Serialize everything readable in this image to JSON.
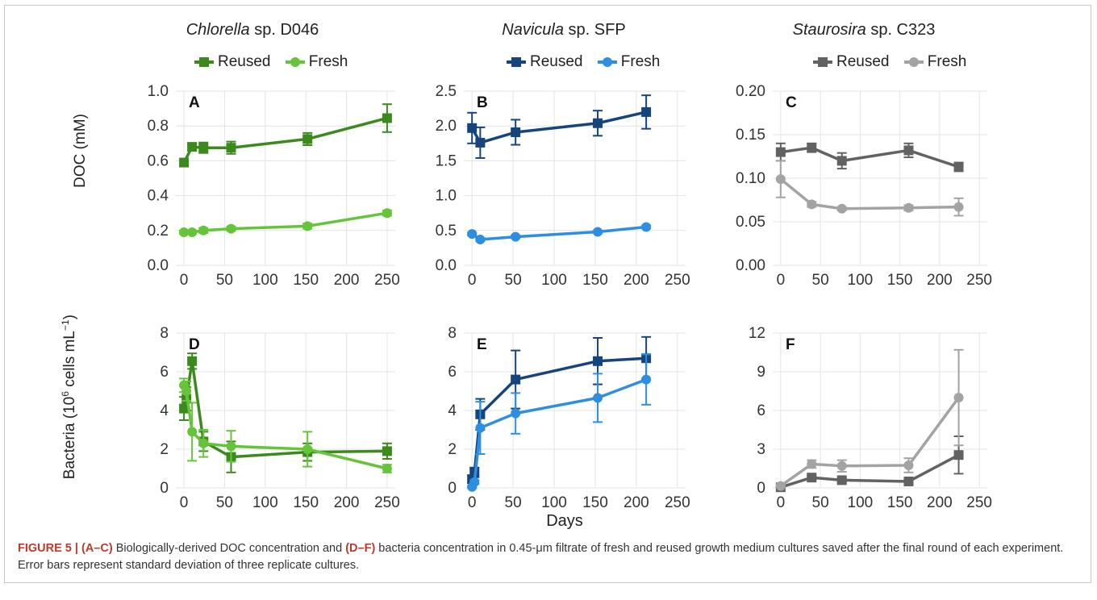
{
  "panel_titles": [
    {
      "genus": "Chlorella",
      "rest": " sp. D046"
    },
    {
      "genus": "Navicula",
      "rest": " sp. SFP"
    },
    {
      "genus": "Staurosira",
      "rest": " sp. C323"
    }
  ],
  "legend": {
    "reused": "Reused",
    "fresh": "Fresh"
  },
  "ylabels": {
    "doc": "DOC (mM)",
    "bacteria_pre": "Bacteria (10",
    "bacteria_sup": "6",
    "bacteria_post": " cells mL",
    "bacteria_sup2": "−1",
    "bacteria_end": ")"
  },
  "xlabel": "Days",
  "caption": {
    "fig": "FIGURE 5 | ",
    "p1": "(A–C)",
    "t1": " Biologically-derived DOC concentration and ",
    "p2": "(D–F)",
    "t2": " bacteria concentration in 0.45-μm filtrate of fresh and reused growth medium cultures saved after the final round of each experiment. Error bars represent standard deviation of three replicate cultures."
  },
  "colors": {
    "chlorella": {
      "reused": "#3c8a1e",
      "fresh": "#66c43a"
    },
    "navicula": {
      "reused": "#16447c",
      "fresh": "#2e8ee0"
    },
    "staurosira": {
      "reused": "#626262",
      "fresh": "#a3a3a3"
    }
  },
  "chart_data": [
    {
      "type": "line",
      "panel": "A",
      "species": "chlorella",
      "ylim": [
        0,
        1.0
      ],
      "yticks": [
        "0.0",
        "0.2",
        "0.4",
        "0.6",
        "0.8",
        "1.0"
      ],
      "xlim": [
        -10,
        260
      ],
      "xticks": [
        0,
        50,
        100,
        150,
        200,
        250
      ],
      "series": [
        {
          "name": "Reused",
          "x": [
            0,
            10,
            24,
            58,
            152,
            250
          ],
          "y": [
            0.59,
            0.68,
            0.675,
            0.675,
            0.725,
            0.845
          ],
          "err": [
            0.01,
            0.02,
            0.03,
            0.035,
            0.035,
            0.08
          ]
        },
        {
          "name": "Fresh",
          "x": [
            0,
            10,
            24,
            58,
            152,
            250
          ],
          "y": [
            0.19,
            0.19,
            0.2,
            0.21,
            0.225,
            0.3
          ],
          "err": [
            0.01,
            0.01,
            0.015,
            0.012,
            0.015,
            0.015
          ]
        }
      ]
    },
    {
      "type": "line",
      "panel": "B",
      "species": "navicula",
      "ylim": [
        0,
        2.5
      ],
      "yticks": [
        "0.0",
        "0.5",
        "1.0",
        "1.5",
        "2.0",
        "2.5"
      ],
      "xlim": [
        -10,
        260
      ],
      "xticks": [
        0,
        50,
        100,
        150,
        200,
        250
      ],
      "series": [
        {
          "name": "Reused",
          "x": [
            0,
            10,
            53,
            153,
            212
          ],
          "y": [
            1.97,
            1.76,
            1.91,
            2.04,
            2.2
          ],
          "err": [
            0.22,
            0.22,
            0.18,
            0.18,
            0.24
          ]
        },
        {
          "name": "Fresh",
          "x": [
            0,
            10,
            53,
            153,
            212
          ],
          "y": [
            0.45,
            0.37,
            0.41,
            0.48,
            0.55
          ],
          "err": [
            0.02,
            0.02,
            0.02,
            0.02,
            0.02
          ]
        }
      ]
    },
    {
      "type": "line",
      "panel": "C",
      "species": "staurosira",
      "ylim": [
        0,
        0.2
      ],
      "yticks": [
        "0.00",
        "0.05",
        "0.10",
        "0.15",
        "0.20"
      ],
      "xlim": [
        -10,
        260
      ],
      "xticks": [
        0,
        50,
        100,
        150,
        200,
        250
      ],
      "series": [
        {
          "name": "Reused",
          "x": [
            0,
            39,
            77,
            161,
            224
          ],
          "y": [
            0.13,
            0.135,
            0.12,
            0.132,
            0.113
          ],
          "err": [
            0.01,
            0.005,
            0.009,
            0.008,
            0.005
          ]
        },
        {
          "name": "Fresh",
          "x": [
            0,
            39,
            77,
            161,
            224
          ],
          "y": [
            0.099,
            0.07,
            0.065,
            0.066,
            0.067
          ],
          "err": [
            0.021,
            0.003,
            0.002,
            0.003,
            0.01
          ]
        }
      ]
    },
    {
      "type": "line",
      "panel": "D",
      "species": "chlorella",
      "ylim": [
        0,
        8
      ],
      "yticks": [
        "0",
        "2",
        "4",
        "6",
        "8"
      ],
      "xlim": [
        -10,
        260
      ],
      "xticks": [
        0,
        50,
        100,
        150,
        200,
        250
      ],
      "series": [
        {
          "name": "Reused",
          "x": [
            0,
            3,
            10,
            24,
            58,
            152,
            250
          ],
          "y": [
            4.1,
            4.6,
            6.55,
            2.4,
            1.6,
            1.85,
            1.9
          ],
          "err": [
            0.6,
            0.6,
            0.4,
            0.5,
            0.8,
            0.45,
            0.4
          ]
        },
        {
          "name": "Fresh",
          "x": [
            0,
            3,
            10,
            24,
            58,
            152,
            250
          ],
          "y": [
            5.3,
            5.0,
            2.9,
            2.3,
            2.15,
            2.0,
            1.0
          ],
          "err": [
            0.35,
            0.5,
            1.5,
            0.7,
            0.8,
            0.9,
            0.2
          ]
        }
      ]
    },
    {
      "type": "line",
      "panel": "E",
      "species": "navicula",
      "ylim": [
        0,
        8
      ],
      "yticks": [
        "0",
        "2",
        "4",
        "6",
        "8"
      ],
      "xlim": [
        -10,
        260
      ],
      "xticks": [
        0,
        50,
        100,
        150,
        200,
        250
      ],
      "series": [
        {
          "name": "Reused",
          "x": [
            0,
            3,
            10,
            53,
            153,
            212
          ],
          "y": [
            0.45,
            0.8,
            3.8,
            5.6,
            6.55,
            6.7
          ],
          "err": [
            0.2,
            0.25,
            0.8,
            1.5,
            1.2,
            1.1
          ]
        },
        {
          "name": "Fresh",
          "x": [
            0,
            3,
            10,
            53,
            153,
            212
          ],
          "y": [
            0.05,
            0.3,
            3.1,
            3.85,
            4.65,
            5.6
          ],
          "err": [
            0.05,
            0.1,
            1.35,
            1.05,
            1.25,
            1.3
          ]
        }
      ]
    },
    {
      "type": "line",
      "panel": "F",
      "species": "staurosira",
      "ylim": [
        0,
        12
      ],
      "yticks": [
        "0",
        "3",
        "6",
        "9",
        "12"
      ],
      "xlim": [
        -10,
        260
      ],
      "xticks": [
        0,
        50,
        100,
        150,
        200,
        250
      ],
      "series": [
        {
          "name": "Reused",
          "x": [
            0,
            39,
            77,
            161,
            224
          ],
          "y": [
            0.05,
            0.8,
            0.6,
            0.5,
            2.55
          ],
          "err": [
            0.05,
            0.15,
            0.15,
            0.15,
            1.45
          ]
        },
        {
          "name": "Fresh",
          "x": [
            0,
            39,
            77,
            161,
            224
          ],
          "y": [
            0.15,
            1.85,
            1.7,
            1.75,
            7.0
          ],
          "err": [
            0.1,
            0.3,
            0.45,
            0.55,
            3.7
          ]
        }
      ]
    }
  ]
}
